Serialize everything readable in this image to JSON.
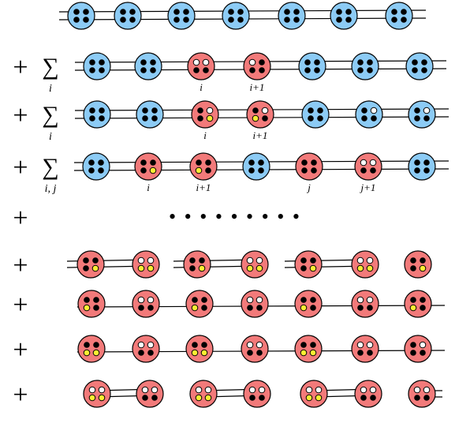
{
  "colors": {
    "blue": "#8ccbf5",
    "red": "#f27a7a",
    "outline": "#000000",
    "black_dot": "#000000",
    "white_dot": "#ffffff",
    "yellow_dot": "#ffee33"
  },
  "symbols": {
    "plus": "+",
    "sum": "∑"
  },
  "ellipsis": "• • • • • • • • •",
  "rows": [
    {
      "plus": false,
      "sum": false,
      "sum_sub": "",
      "lines": "double",
      "sites": [
        {
          "color": "blue",
          "dots": "bbbb",
          "label": ""
        },
        {
          "color": "blue",
          "dots": "bbbb",
          "label": ""
        },
        {
          "color": "blue",
          "dots": "bbbb",
          "label": ""
        },
        {
          "color": "blue",
          "dots": "bbbb",
          "label": ""
        },
        {
          "color": "blue",
          "dots": "bbbb",
          "label": ""
        },
        {
          "color": "blue",
          "dots": "bbbb",
          "label": ""
        },
        {
          "color": "blue",
          "dots": "bbbb",
          "label": ""
        }
      ]
    },
    {
      "plus": true,
      "sum": true,
      "sum_sub": "i",
      "lines": "double",
      "sites": [
        {
          "color": "blue",
          "dots": "bbbb",
          "label": ""
        },
        {
          "color": "blue",
          "dots": "bbbb",
          "label": ""
        },
        {
          "color": "red",
          "dots": "wwbb",
          "label": "i"
        },
        {
          "color": "red",
          "dots": "wbbb",
          "label": "i+1"
        },
        {
          "color": "blue",
          "dots": "bbbb",
          "label": ""
        },
        {
          "color": "blue",
          "dots": "bbbb",
          "label": ""
        },
        {
          "color": "blue",
          "dots": "bbbb",
          "label": ""
        }
      ]
    },
    {
      "plus": true,
      "sum": true,
      "sum_sub": "i",
      "lines": "double",
      "sites": [
        {
          "color": "blue",
          "dots": "bbbb",
          "label": ""
        },
        {
          "color": "blue",
          "dots": "bbbb",
          "label": ""
        },
        {
          "color": "red",
          "dots": "bwby",
          "label": "i"
        },
        {
          "color": "red",
          "dots": "bwyb",
          "label": "i+1"
        },
        {
          "color": "blue",
          "dots": "bbbb",
          "label": ""
        },
        {
          "color": "blue",
          "dots": "bwbb",
          "label": ""
        },
        {
          "color": "blue",
          "dots": "bwbb",
          "label": ""
        }
      ]
    },
    {
      "plus": true,
      "sum": true,
      "sum_sub": "i, j",
      "lines": "double",
      "sites": [
        {
          "color": "blue",
          "dots": "bbbb",
          "label": ""
        },
        {
          "color": "red",
          "dots": "bbby",
          "label": "i"
        },
        {
          "color": "red",
          "dots": "bbyb",
          "label": "i+1"
        },
        {
          "color": "blue",
          "dots": "bbbb",
          "label": ""
        },
        {
          "color": "red",
          "dots": "bbbb",
          "label": "j"
        },
        {
          "color": "red",
          "dots": "wwbb",
          "label": "j+1"
        },
        {
          "color": "blue",
          "dots": "bbbb",
          "label": ""
        }
      ]
    },
    {
      "plus": true,
      "sum": false,
      "sum_sub": "",
      "lines": "none",
      "ellipsis": true,
      "sites": []
    },
    {
      "plus": true,
      "sum": false,
      "sum_sub": "",
      "lines": "pairs",
      "sites": [
        {
          "color": "red",
          "dots": "bbby",
          "label": ""
        },
        {
          "color": "red",
          "dots": "wwyy",
          "label": ""
        },
        {
          "color": "red",
          "dots": "bbby",
          "label": ""
        },
        {
          "color": "red",
          "dots": "wwyy",
          "label": ""
        },
        {
          "color": "red",
          "dots": "bbby",
          "label": ""
        },
        {
          "color": "red",
          "dots": "wwyy",
          "label": ""
        },
        {
          "color": "red",
          "dots": "bbby",
          "label": ""
        }
      ]
    },
    {
      "plus": true,
      "sum": false,
      "sum_sub": "",
      "lines": "single",
      "sites": [
        {
          "color": "red",
          "dots": "bbyb",
          "label": ""
        },
        {
          "color": "red",
          "dots": "wwbb",
          "label": ""
        },
        {
          "color": "red",
          "dots": "bbyb",
          "label": ""
        },
        {
          "color": "red",
          "dots": "wwbb",
          "label": ""
        },
        {
          "color": "red",
          "dots": "bbyb",
          "label": ""
        },
        {
          "color": "red",
          "dots": "wwbb",
          "label": ""
        },
        {
          "color": "red",
          "dots": "bbyb",
          "label": ""
        }
      ]
    },
    {
      "plus": true,
      "sum": false,
      "sum_sub": "",
      "lines": "single",
      "sites": [
        {
          "color": "red",
          "dots": "bbyy",
          "label": ""
        },
        {
          "color": "red",
          "dots": "wwbb",
          "label": ""
        },
        {
          "color": "red",
          "dots": "bbyy",
          "label": ""
        },
        {
          "color": "red",
          "dots": "wwbb",
          "label": ""
        },
        {
          "color": "red",
          "dots": "bbyy",
          "label": ""
        },
        {
          "color": "red",
          "dots": "wwbb",
          "label": ""
        },
        {
          "color": "red",
          "dots": "bwbb",
          "label": ""
        }
      ]
    },
    {
      "plus": true,
      "sum": false,
      "sum_sub": "",
      "lines": "pairs-offset",
      "sites": [
        {
          "color": "red",
          "dots": "wwyy",
          "label": ""
        },
        {
          "color": "red",
          "dots": "wwbb",
          "label": ""
        },
        {
          "color": "red",
          "dots": "wwyy",
          "label": ""
        },
        {
          "color": "red",
          "dots": "wwbb",
          "label": ""
        },
        {
          "color": "red",
          "dots": "wwyy",
          "label": ""
        },
        {
          "color": "red",
          "dots": "wwbb",
          "label": ""
        },
        {
          "color": "red",
          "dots": "wwbb",
          "label": ""
        }
      ]
    }
  ]
}
